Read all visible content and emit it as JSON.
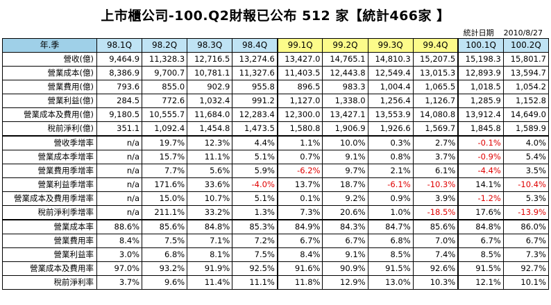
{
  "title": "上市櫃公司-100.Q2財報已公布 512 家【統計466家 】",
  "stat_date_label": "統計日期",
  "stat_date": "2010/8/27",
  "table": {
    "label_header": "年.季",
    "quarters": [
      "98.1Q",
      "98.2Q",
      "98.3Q",
      "98.4Q",
      "99.1Q",
      "99.2Q",
      "99.3Q",
      "99.4Q",
      "100.1Q",
      "100.2Q"
    ],
    "groups": [
      {
        "rows": [
          {
            "label": "營收(億)",
            "values": [
              "9,464.9",
              "11,328.3",
              "12,716.5",
              "13,274.6",
              "13,427.0",
              "14,765.1",
              "14,810.3",
              "15,207.5",
              "15,198.3",
              "15,801.7"
            ]
          },
          {
            "label": "營業成本(億)",
            "values": [
              "8,386.9",
              "9,700.7",
              "10,781.1",
              "11,327.6",
              "11,403.5",
              "12,443.8",
              "12,549.4",
              "13,015.3",
              "12,893.9",
              "13,594.7"
            ]
          },
          {
            "label": "營業費用(億)",
            "values": [
              "793.6",
              "855.0",
              "902.9",
              "955.8",
              "896.5",
              "983.3",
              "1,004.4",
              "1,065.5",
              "1,018.5",
              "1,054.2"
            ]
          },
          {
            "label": "營業利益(億)",
            "values": [
              "284.5",
              "772.6",
              "1,032.4",
              "991.2",
              "1,127.0",
              "1,338.0",
              "1,256.4",
              "1,126.7",
              "1,285.9",
              "1,152.8"
            ]
          },
          {
            "label": "營業成本及費用(億)",
            "values": [
              "9,180.5",
              "10,555.7",
              "11,684.0",
              "12,283.4",
              "12,300.0",
              "13,427.1",
              "13,553.9",
              "14,080.8",
              "13,912.4",
              "14,649.0"
            ]
          },
          {
            "label": "稅前淨利(億)",
            "values": [
              "351.1",
              "1,092.4",
              "1,454.8",
              "1,473.5",
              "1,580.8",
              "1,906.9",
              "1,926.6",
              "1,569.7",
              "1,845.8",
              "1,589.9"
            ]
          }
        ]
      },
      {
        "rows": [
          {
            "label": "營收季增率",
            "values": [
              "n/a",
              "19.7%",
              "12.3%",
              "4.4%",
              "1.1%",
              "10.0%",
              "0.3%",
              "2.7%",
              "-0.1%",
              "4.0%"
            ]
          },
          {
            "label": "營業成本季增率",
            "values": [
              "n/a",
              "15.7%",
              "11.1%",
              "5.1%",
              "0.7%",
              "9.1%",
              "0.8%",
              "3.7%",
              "-0.9%",
              "5.4%"
            ]
          },
          {
            "label": "營業費用季增率",
            "values": [
              "n/a",
              "7.7%",
              "5.6%",
              "5.9%",
              "-6.2%",
              "9.7%",
              "2.1%",
              "6.1%",
              "-4.4%",
              "3.5%"
            ]
          },
          {
            "label": "營業利益季增率",
            "values": [
              "n/a",
              "171.6%",
              "33.6%",
              "-4.0%",
              "13.7%",
              "18.7%",
              "-6.1%",
              "-10.3%",
              "14.1%",
              "-10.4%"
            ]
          },
          {
            "label": "營業成本及費用季增率",
            "values": [
              "n/a",
              "15.0%",
              "10.7%",
              "5.1%",
              "0.1%",
              "9.2%",
              "0.9%",
              "3.9%",
              "-1.2%",
              "5.3%"
            ]
          },
          {
            "label": "稅前淨利季增率",
            "values": [
              "n/a",
              "211.1%",
              "33.2%",
              "1.3%",
              "7.3%",
              "20.6%",
              "1.0%",
              "-18.5%",
              "17.6%",
              "-13.9%"
            ]
          }
        ]
      },
      {
        "rows": [
          {
            "label": "營業成本率",
            "values": [
              "88.6%",
              "85.6%",
              "84.8%",
              "85.3%",
              "84.9%",
              "84.3%",
              "84.7%",
              "85.6%",
              "84.8%",
              "86.0%"
            ]
          },
          {
            "label": "營業費用率",
            "values": [
              "8.4%",
              "7.5%",
              "7.1%",
              "7.2%",
              "6.7%",
              "6.7%",
              "6.8%",
              "7.0%",
              "6.7%",
              "6.7%"
            ]
          },
          {
            "label": "營業利益率",
            "values": [
              "3.0%",
              "6.8%",
              "8.1%",
              "7.5%",
              "8.4%",
              "9.1%",
              "8.5%",
              "7.4%",
              "8.5%",
              "7.3%"
            ]
          },
          {
            "label": "營業成本及費用率",
            "values": [
              "97.0%",
              "93.2%",
              "91.9%",
              "92.5%",
              "91.6%",
              "90.9%",
              "91.5%",
              "92.6%",
              "91.5%",
              "92.7%"
            ]
          },
          {
            "label": "稅前淨利率",
            "values": [
              "3.7%",
              "9.6%",
              "11.4%",
              "11.1%",
              "11.8%",
              "12.9%",
              "13.0%",
              "10.3%",
              "12.1%",
              "10.1%"
            ]
          }
        ]
      }
    ]
  }
}
